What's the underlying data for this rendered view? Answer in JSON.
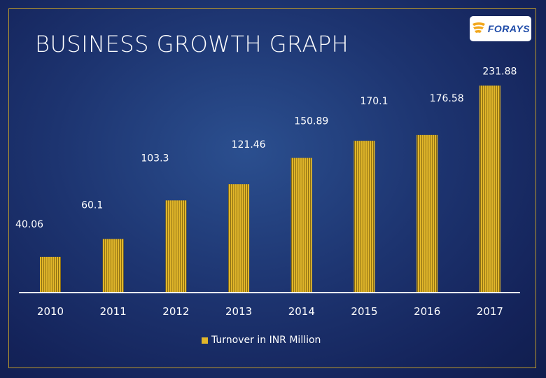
{
  "slide": {
    "title": "BUSINESS GROWTH GRAPH",
    "logo_text": "FORAYS"
  },
  "colors": {
    "bar": "#e1b62a",
    "bar_stripe": "#8a6d12",
    "axis": "#ffffff",
    "text": "#ffffff"
  },
  "chart_data": {
    "type": "bar",
    "categories": [
      "2010",
      "2011",
      "2012",
      "2013",
      "2014",
      "2015",
      "2016",
      "2017"
    ],
    "series": [
      {
        "name": "Turnover in INR Million",
        "values": [
          40.06,
          60.1,
          103.3,
          121.46,
          150.89,
          170.1,
          176.58,
          231.88
        ]
      }
    ],
    "data_labels": [
      "40.06",
      "60.1",
      "103.3",
      "121.46",
      "150.89",
      "170.1",
      "176.58",
      "231.88"
    ],
    "xlabel": "",
    "ylabel": "",
    "ylim": [
      0,
      240
    ],
    "grid": false,
    "legend": "bottom"
  }
}
